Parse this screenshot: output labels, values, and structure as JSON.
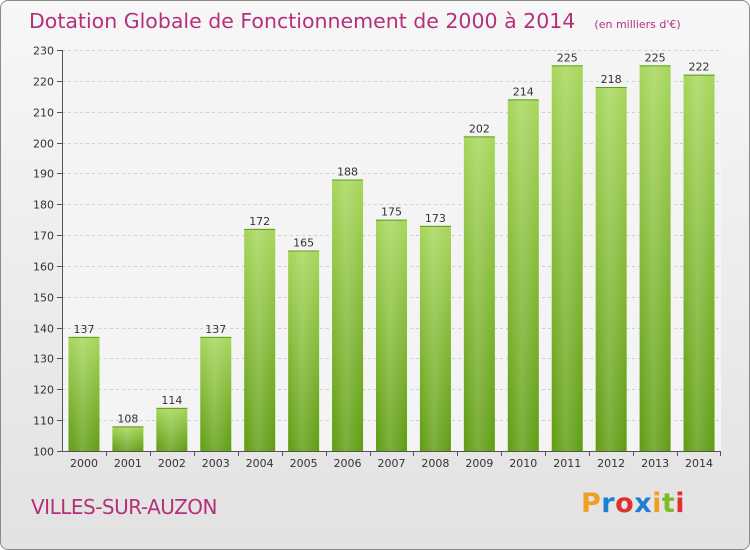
{
  "chart_data": {
    "type": "bar",
    "title": "Dotation Globale de Fonctionnement de 2000 à 2014",
    "subtitle": "(en milliers d'€)",
    "xlabel": "",
    "ylabel": "",
    "categories": [
      "2000",
      "2001",
      "2002",
      "2003",
      "2004",
      "2005",
      "2006",
      "2007",
      "2008",
      "2009",
      "2010",
      "2011",
      "2012",
      "2013",
      "2014"
    ],
    "values": [
      137,
      108,
      114,
      137,
      172,
      165,
      188,
      175,
      173,
      202,
      214,
      225,
      218,
      225,
      222
    ],
    "ylim": [
      100,
      230
    ],
    "yticks": [
      100,
      110,
      120,
      130,
      140,
      150,
      160,
      170,
      180,
      190,
      200,
      210,
      220,
      230
    ],
    "grid": true,
    "legend": "none",
    "bar_color": "#7dbb2a"
  },
  "footer": {
    "commune": "VILLES-SUR-AUZON",
    "logo_text": "Proxiti",
    "logo_colors": [
      "#f0a020",
      "#1e7fd0",
      "#e03030",
      "#1e7fd0",
      "#f0a020",
      "#7dbb2a",
      "#e03030"
    ]
  }
}
